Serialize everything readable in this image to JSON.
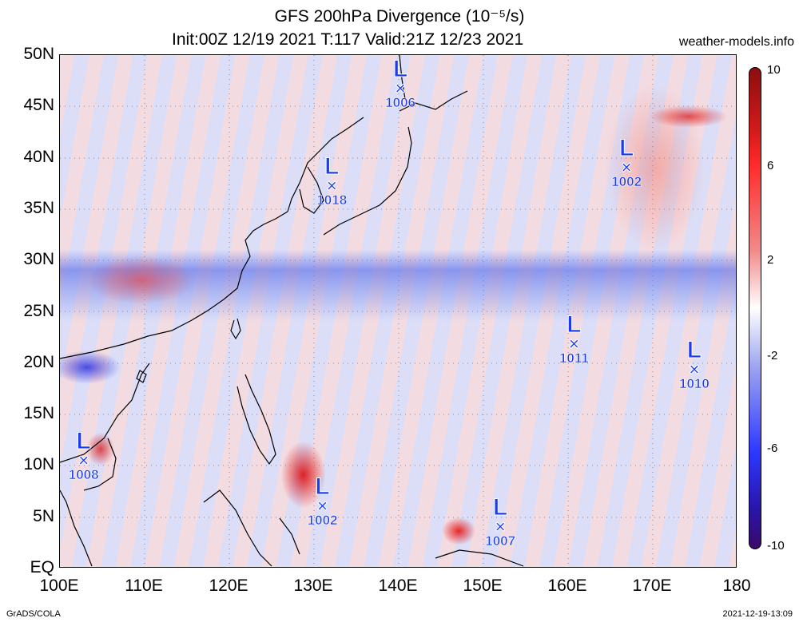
{
  "title": {
    "line1": "GFS 200hPa Divergence (10⁻⁵/s)",
    "line2": "Init:00Z 12/19 2021  T:117  Valid:21Z 12/23 2021",
    "site": "weather-models.info"
  },
  "axes": {
    "lat_labels": [
      "50N",
      "45N",
      "40N",
      "35N",
      "30N",
      "25N",
      "20N",
      "15N",
      "10N",
      "5N",
      "EQ"
    ],
    "lon_labels": [
      "100E",
      "110E",
      "120E",
      "130E",
      "140E",
      "150E",
      "160E",
      "170E",
      "180"
    ]
  },
  "lows": [
    {
      "label": "L",
      "mark": "×",
      "pressure": "1006",
      "lon": 140.2,
      "lat": 46.5
    },
    {
      "label": "L",
      "mark": "×",
      "pressure": "1018",
      "lon": 132.1,
      "lat": 37.0
    },
    {
      "label": "L",
      "mark": "×",
      "pressure": "1002",
      "lon": 166.9,
      "lat": 38.8
    },
    {
      "label": "L",
      "mark": "×",
      "pressure": "1011",
      "lon": 160.7,
      "lat": 21.6
    },
    {
      "label": "L",
      "mark": "×",
      "pressure": "1010",
      "lon": 174.9,
      "lat": 19.1
    },
    {
      "label": "L",
      "mark": "×",
      "pressure": "1008",
      "lon": 102.8,
      "lat": 10.3
    },
    {
      "label": "L",
      "mark": "×",
      "pressure": "1002",
      "lon": 131.0,
      "lat": 5.8
    },
    {
      "label": "L",
      "mark": "×",
      "pressure": "1007",
      "lon": 152.0,
      "lat": 3.8
    }
  ],
  "colorbar": {
    "ticks": [
      "10",
      "6",
      "2",
      "-2",
      "-6",
      "-10"
    ],
    "colors": [
      "#8a0e0e",
      "#ff2a2a",
      "#f28a8a",
      "#ffffff",
      "#9fa6f0",
      "#2c38ff",
      "#3a0a66"
    ]
  },
  "footer": {
    "left": "GrADS/COLA",
    "right": "2021-12-19-13:09"
  }
}
